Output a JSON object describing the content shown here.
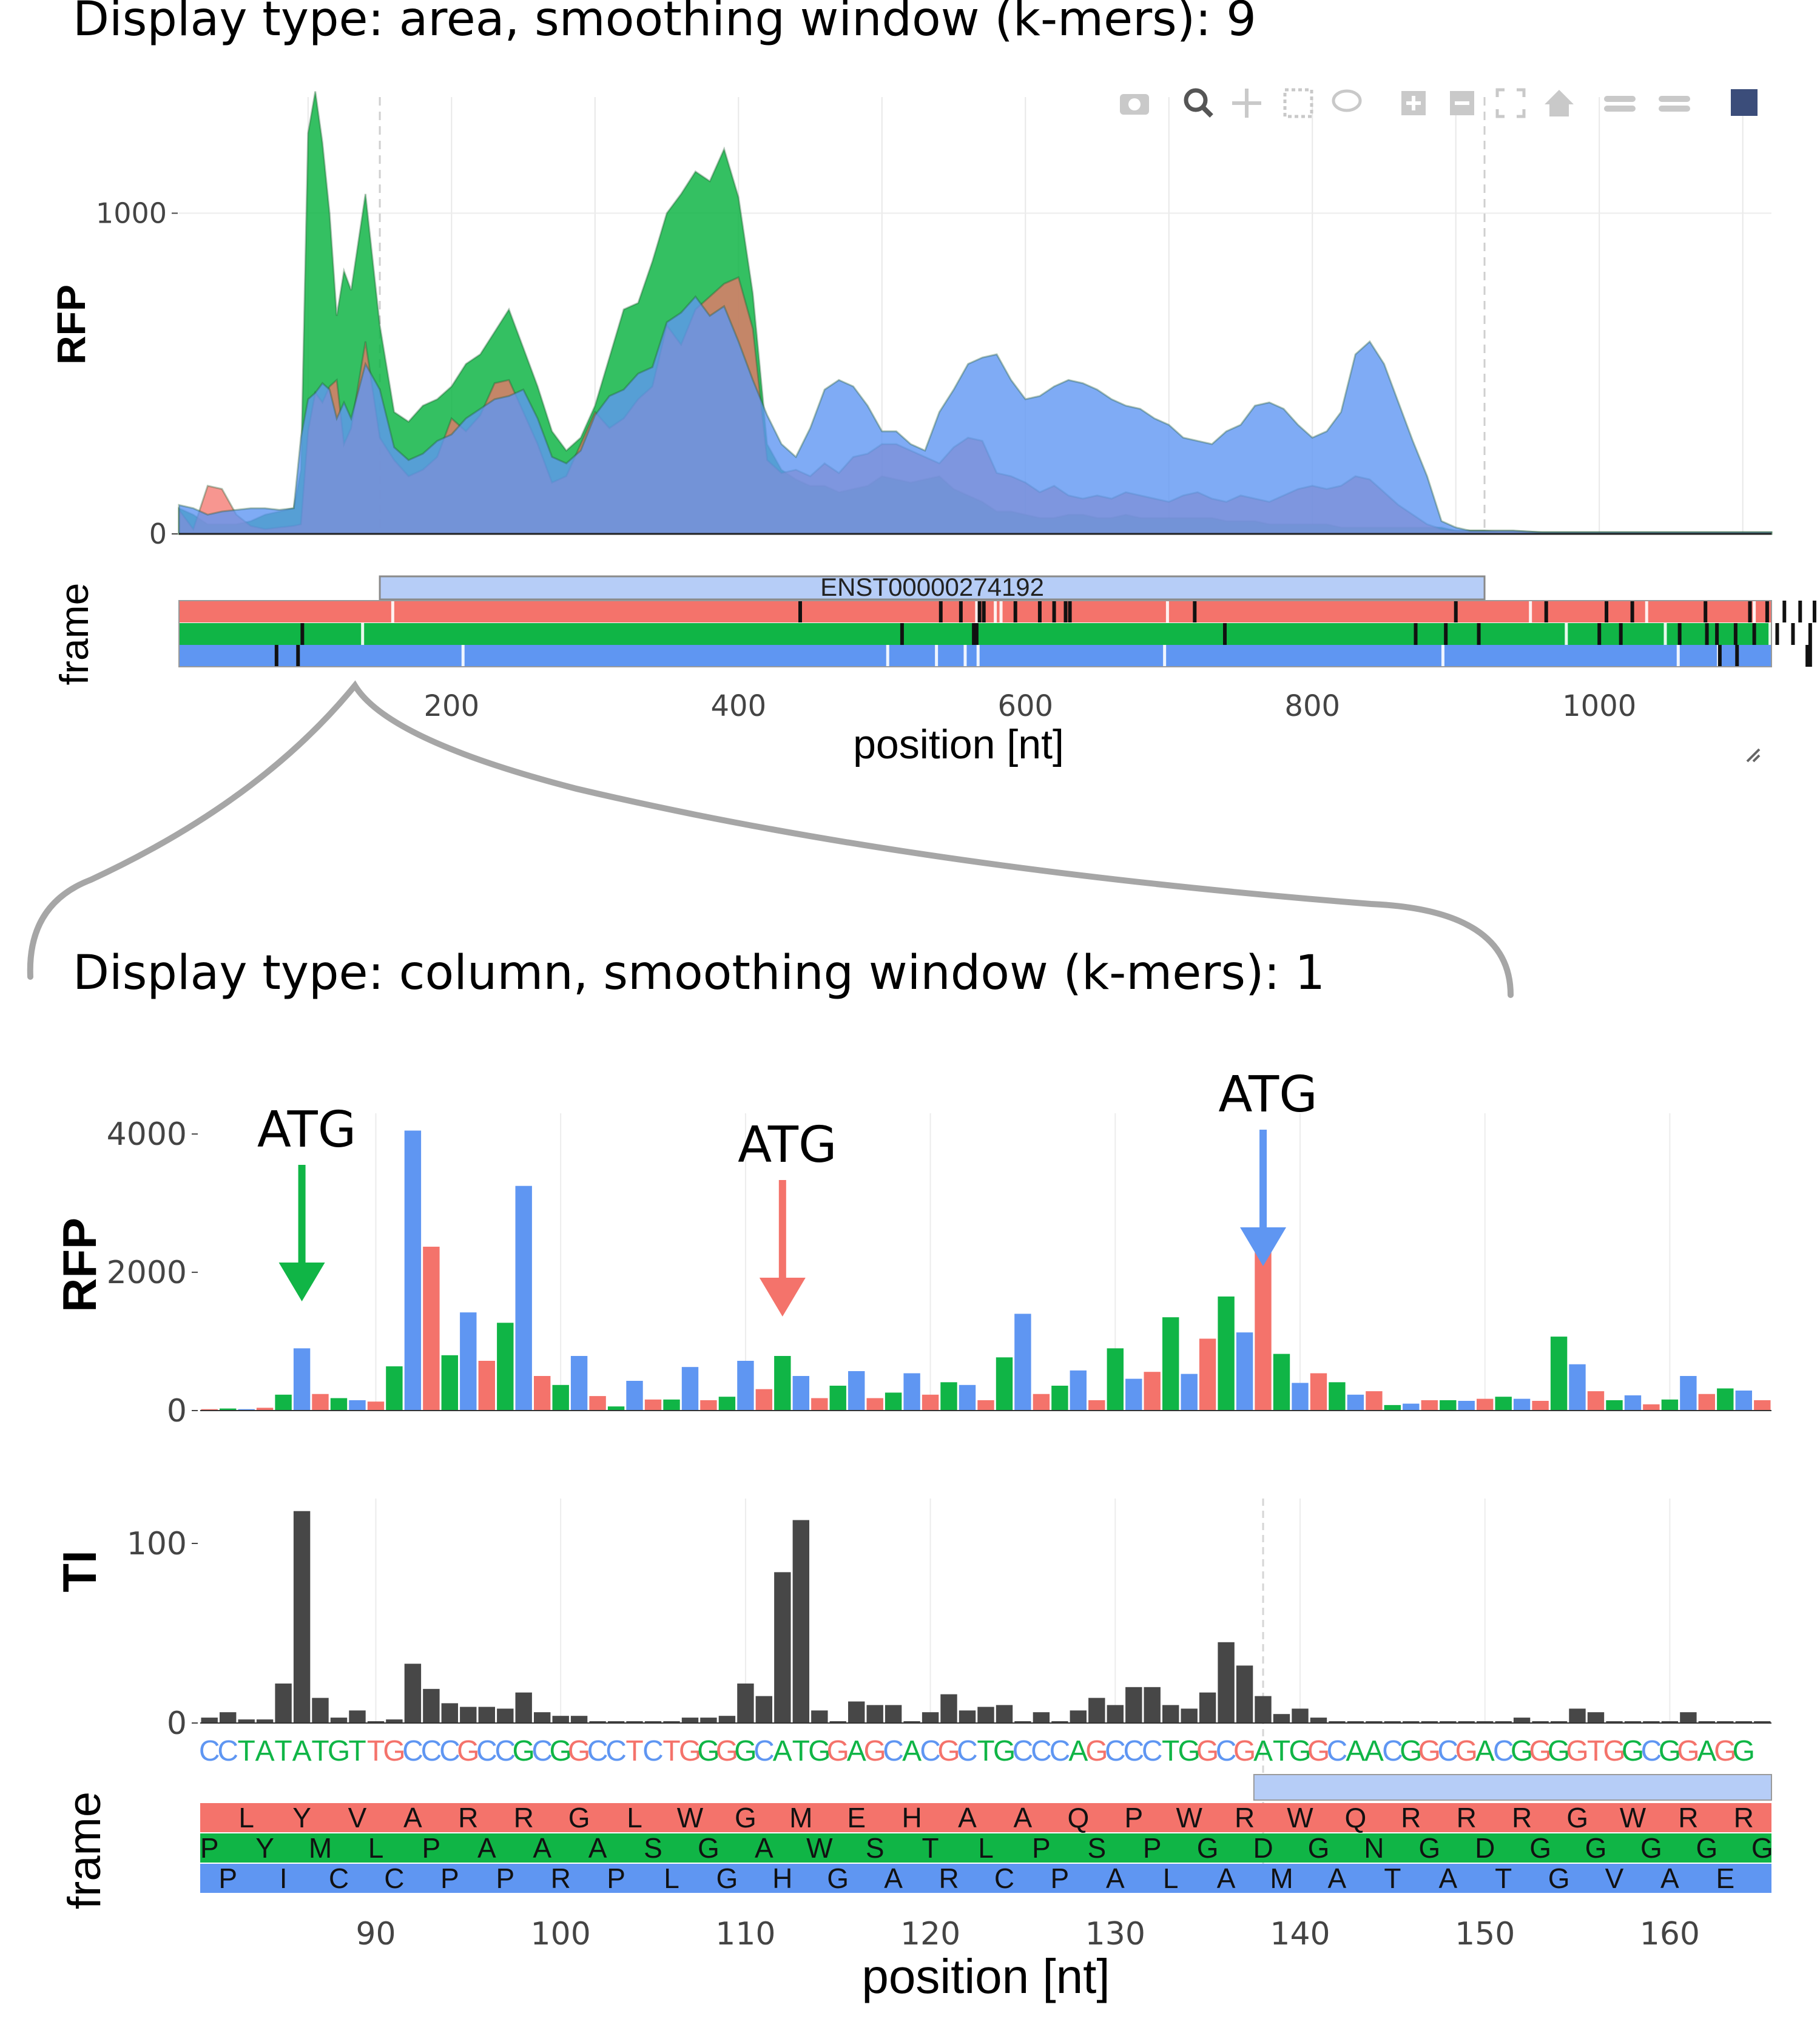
{
  "captions": {
    "top": "Display type: area, smoothing window (k-mers): 9",
    "bottom": "Display type: column, smoothing window (k-mers): 1"
  },
  "colors": {
    "frame1": "#f4736b",
    "frame2": "#10b546",
    "frame3": "#5f96f2",
    "ti": "#474747",
    "utr": "#b6cdf7"
  },
  "toolbar": {
    "icons": [
      "camera-icon",
      "zoom-icon",
      "pan-icon",
      "box-select-icon",
      "lasso-icon",
      "zoom-in-icon",
      "zoom-out-icon",
      "autoscale-icon",
      "reset-axes-icon",
      "spike-lines-icon",
      "compare-hover-icon",
      "plotly-logo-icon"
    ]
  },
  "top_chart": {
    "ylabel": "RFP",
    "frame_label": "frame",
    "xlabel": "position [nt]",
    "xticks": [
      200,
      400,
      600,
      800,
      1000
    ],
    "yticks": [
      0,
      1000
    ],
    "transcript_label": "ENST00000274192",
    "cds_range": [
      150,
      920
    ],
    "frame1_stops": [
      443,
      541,
      555,
      568,
      571,
      593,
      610,
      620,
      628,
      631,
      718,
      900,
      963,
      1005,
      1023,
      1074,
      1105,
      1117,
      1129,
      1140,
      1150
    ],
    "frame1_starts": [
      159,
      566,
      579,
      583,
      699,
      952,
      1033,
      1108
    ],
    "frame2_stops": [
      96,
      514,
      564,
      566,
      739,
      872,
      893,
      916,
      1000,
      1015,
      1056,
      1075,
      1082,
      1095,
      1108,
      1124,
      1135,
      1147
    ],
    "frame2_starts": [
      138,
      977,
      1046,
      1119,
      1155
    ],
    "frame3_stops": [
      78,
      93,
      1084,
      1096,
      1145,
      1147,
      1175
    ],
    "frame3_starts": [
      208,
      504,
      538,
      558,
      567,
      697,
      891,
      1055,
      1083
    ]
  },
  "chart_data": [
    {
      "type": "area",
      "title": "Display type: area, smoothing window (k-mers): 9",
      "xlabel": "position [nt]",
      "ylabel": "RFP",
      "xlim": [
        10,
        1120
      ],
      "ylim": [
        0,
        1400
      ],
      "grid": true,
      "legend": "none",
      "x": [
        10,
        20,
        30,
        40,
        50,
        60,
        70,
        80,
        90,
        95,
        100,
        105,
        110,
        115,
        120,
        125,
        130,
        140,
        150,
        160,
        170,
        180,
        190,
        200,
        210,
        220,
        230,
        240,
        250,
        260,
        270,
        280,
        290,
        300,
        310,
        320,
        330,
        340,
        350,
        360,
        370,
        380,
        390,
        400,
        410,
        420,
        430,
        440,
        450,
        460,
        470,
        480,
        490,
        500,
        510,
        520,
        530,
        540,
        550,
        560,
        570,
        580,
        590,
        600,
        610,
        620,
        630,
        640,
        650,
        660,
        670,
        680,
        690,
        700,
        710,
        720,
        730,
        740,
        750,
        760,
        770,
        780,
        790,
        800,
        810,
        820,
        830,
        840,
        850,
        860,
        870,
        880,
        890,
        900,
        910,
        920,
        930,
        940,
        960,
        980,
        1000,
        1020,
        1040,
        1060,
        1080,
        1100,
        1120
      ],
      "series": [
        {
          "name": "frame1",
          "values": [
            75,
            15,
            150,
            140,
            60,
            25,
            15,
            20,
            25,
            30,
            320,
            440,
            410,
            460,
            480,
            280,
            330,
            600,
            300,
            230,
            180,
            200,
            240,
            360,
            320,
            370,
            470,
            480,
            380,
            280,
            160,
            180,
            280,
            380,
            330,
            360,
            420,
            460,
            650,
            590,
            700,
            740,
            780,
            800,
            640,
            230,
            190,
            200,
            180,
            220,
            190,
            240,
            250,
            280,
            280,
            260,
            240,
            220,
            270,
            300,
            290,
            190,
            180,
            160,
            130,
            150,
            120,
            110,
            120,
            110,
            130,
            120,
            110,
            100,
            120,
            130,
            110,
            100,
            120,
            110,
            100,
            120,
            140,
            150,
            140,
            150,
            180,
            170,
            130,
            90,
            60,
            30,
            15,
            10,
            10,
            10,
            10,
            10,
            5,
            5,
            5,
            5,
            5,
            5,
            5,
            5,
            5
          ]
        },
        {
          "name": "frame2",
          "values": [
            80,
            60,
            30,
            30,
            30,
            40,
            60,
            70,
            80,
            200,
            1250,
            1380,
            1220,
            1000,
            680,
            820,
            760,
            1060,
            650,
            380,
            350,
            400,
            420,
            460,
            530,
            560,
            630,
            700,
            580,
            460,
            320,
            260,
            300,
            400,
            550,
            700,
            720,
            850,
            1000,
            1060,
            1130,
            1100,
            1200,
            1050,
            750,
            280,
            200,
            170,
            150,
            150,
            130,
            140,
            150,
            180,
            170,
            160,
            170,
            180,
            140,
            120,
            100,
            70,
            70,
            60,
            50,
            50,
            60,
            60,
            50,
            50,
            60,
            50,
            50,
            50,
            50,
            50,
            50,
            40,
            40,
            40,
            30,
            30,
            30,
            30,
            30,
            20,
            20,
            20,
            20,
            20,
            20,
            20,
            20,
            10,
            10,
            10,
            5,
            5,
            5,
            5,
            5,
            5,
            5,
            5,
            5,
            5,
            5
          ]
        },
        {
          "name": "frame3",
          "values": [
            90,
            80,
            60,
            70,
            75,
            80,
            80,
            75,
            80,
            300,
            420,
            440,
            470,
            450,
            360,
            410,
            360,
            530,
            450,
            270,
            230,
            250,
            290,
            310,
            360,
            390,
            420,
            430,
            450,
            360,
            240,
            220,
            260,
            370,
            430,
            450,
            500,
            520,
            660,
            690,
            740,
            680,
            710,
            600,
            480,
            370,
            280,
            240,
            330,
            450,
            480,
            460,
            400,
            320,
            320,
            280,
            260,
            380,
            450,
            530,
            550,
            560,
            480,
            420,
            430,
            460,
            480,
            470,
            450,
            420,
            400,
            390,
            360,
            340,
            300,
            290,
            280,
            320,
            340,
            400,
            410,
            390,
            340,
            300,
            320,
            380,
            560,
            600,
            530,
            410,
            290,
            180,
            40,
            20,
            10,
            10,
            10,
            10,
            5,
            5,
            5,
            5,
            5,
            5,
            5,
            5,
            5
          ]
        }
      ]
    },
    {
      "type": "bar",
      "title": "Display type: column, smoothing window (k-mers): 1",
      "xlabel": "position [nt]",
      "ylabel": "RFP",
      "xlim": [
        80.5,
        165.5
      ],
      "ylim": [
        0,
        4300
      ],
      "grid": true,
      "legend": "none",
      "x": [
        81,
        82,
        83,
        84,
        85,
        86,
        87,
        88,
        89,
        90,
        91,
        92,
        93,
        94,
        95,
        96,
        97,
        98,
        99,
        100,
        101,
        102,
        103,
        104,
        105,
        106,
        107,
        108,
        109,
        110,
        111,
        112,
        113,
        114,
        115,
        116,
        117,
        118,
        119,
        120,
        121,
        122,
        123,
        124,
        125,
        126,
        127,
        128,
        129,
        130,
        131,
        132,
        133,
        134,
        135,
        136,
        137,
        138,
        139,
        140,
        141,
        142,
        143,
        144,
        145,
        146,
        147,
        148,
        149,
        150,
        151,
        152,
        153,
        154,
        155,
        156,
        157,
        158,
        159,
        160,
        161,
        162,
        163,
        164,
        165
      ],
      "frame_of_x": [
        1,
        2,
        3,
        1,
        2,
        3,
        1,
        2,
        3,
        1,
        2,
        3,
        1,
        2,
        3,
        1,
        2,
        3,
        1,
        2,
        3,
        1,
        2,
        3,
        1,
        2,
        3,
        1,
        2,
        3,
        1,
        2,
        3,
        1,
        2,
        3,
        1,
        2,
        3,
        1,
        2,
        3,
        1,
        2,
        3,
        1,
        2,
        3,
        1,
        2,
        3,
        1,
        2,
        3,
        1,
        2,
        3,
        1,
        2,
        3,
        1,
        2,
        3,
        1,
        2,
        3,
        1,
        2,
        3,
        1,
        2,
        3,
        1,
        2,
        3,
        1,
        2,
        3,
        1,
        2,
        3,
        1,
        2,
        3,
        1
      ],
      "values": [
        20,
        30,
        20,
        40,
        230,
        900,
        240,
        180,
        150,
        130,
        640,
        4050,
        2370,
        800,
        1420,
        720,
        1270,
        3250,
        500,
        370,
        790,
        210,
        60,
        430,
        160,
        160,
        630,
        150,
        200,
        720,
        310,
        790,
        500,
        180,
        360,
        570,
        180,
        260,
        540,
        230,
        410,
        370,
        150,
        770,
        1400,
        240,
        360,
        580,
        150,
        900,
        460,
        560,
        1350,
        530,
        1040,
        1650,
        1130,
        2490,
        820,
        400,
        540,
        410,
        230,
        280,
        80,
        100,
        150,
        150,
        140,
        170,
        200,
        170,
        140,
        1070,
        670,
        280,
        150,
        220,
        90,
        160,
        500,
        240,
        320,
        290,
        150
      ],
      "annotations": [
        {
          "text": "ATG",
          "x": 86,
          "frame": 2
        },
        {
          "text": "ATG",
          "x": 112,
          "frame": 1
        },
        {
          "text": "ATG",
          "x": 138,
          "frame": 3
        }
      ]
    },
    {
      "type": "bar",
      "xlabel": "position [nt]",
      "ylabel": "TI",
      "xlim": [
        80.5,
        165.5
      ],
      "ylim": [
        0,
        125
      ],
      "grid": true,
      "legend": "none",
      "x": [
        81,
        82,
        83,
        84,
        85,
        86,
        87,
        88,
        89,
        90,
        91,
        92,
        93,
        94,
        95,
        96,
        97,
        98,
        99,
        100,
        101,
        102,
        103,
        104,
        105,
        106,
        107,
        108,
        109,
        110,
        111,
        112,
        113,
        114,
        115,
        116,
        117,
        118,
        119,
        120,
        121,
        122,
        123,
        124,
        125,
        126,
        127,
        128,
        129,
        130,
        131,
        132,
        133,
        134,
        135,
        136,
        137,
        138,
        139,
        140,
        141,
        142,
        143,
        144,
        145,
        146,
        147,
        148,
        149,
        150,
        151,
        152,
        153,
        154,
        155,
        156,
        157,
        158,
        159,
        160,
        161,
        162,
        163,
        164,
        165
      ],
      "values": [
        3,
        6,
        2,
        2,
        22,
        118,
        14,
        3,
        7,
        1,
        2,
        33,
        19,
        11,
        9,
        9,
        8,
        17,
        6,
        4,
        4,
        1,
        1,
        1,
        1,
        1,
        3,
        3,
        4,
        22,
        15,
        84,
        113,
        7,
        1,
        12,
        10,
        10,
        1,
        6,
        16,
        7,
        9,
        10,
        1,
        6,
        1,
        7,
        14,
        10,
        20,
        20,
        10,
        8,
        17,
        45,
        32,
        15,
        5,
        8,
        3,
        1,
        1,
        1,
        1,
        1,
        1,
        1,
        1,
        1,
        1,
        3,
        1,
        1,
        8,
        6,
        1,
        1,
        1,
        1,
        6,
        1,
        1,
        1,
        1
      ]
    }
  ],
  "sequence": {
    "nucleotides": "CCTATATGTTGCCCGCCGCGGCCTCTGGGGCATGGAGCACGCTGCCCAGCCCTGGCGATGGCAACGGCGACGGGGTGGCGGAGG",
    "start_position": 82
  },
  "bottom_frames": {
    "label": "frame",
    "frame1": {
      "aa": "LYVARRGLWGMEHAAQPWRWQRRRGWRR",
      "start_x": 82
    },
    "frame2": {
      "aa": "PYMLPAAASGAWSTLPSPGDGNGDGGGGG",
      "start_x": 80
    },
    "frame3": {
      "aa": "PICCPPRPLGHGARCPALAMATATGVAEE",
      "start_x": 81
    },
    "cds_start": 138,
    "stop_marker_x": 160
  },
  "bottom_axes": {
    "rfp_label": "RFP",
    "ti_label": "TI",
    "xlabel": "position [nt]",
    "xticks": [
      90,
      100,
      110,
      120,
      130,
      140,
      150,
      160
    ],
    "rfp_yticks": [
      0,
      2000,
      4000
    ],
    "ti_yticks": [
      0,
      100
    ]
  }
}
